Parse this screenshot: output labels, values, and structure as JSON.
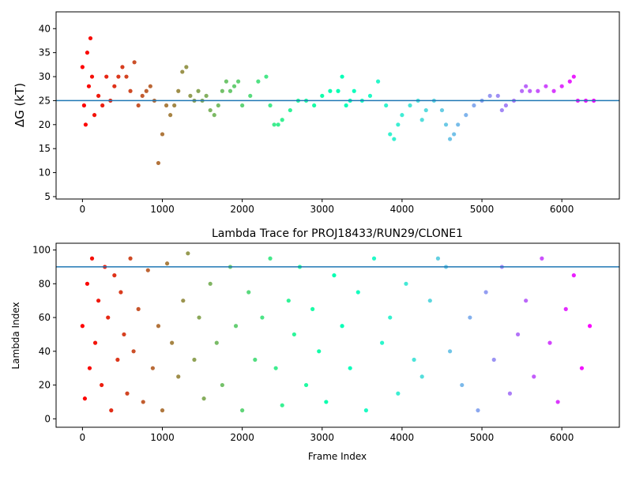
{
  "chart_data": [
    {
      "type": "scatter",
      "title": "",
      "xlabel": "",
      "ylabel": "ΔG (kT)",
      "xlim": [
        -330,
        6720
      ],
      "ylim": [
        4.5,
        43.5
      ],
      "xticks": [
        0,
        1000,
        2000,
        3000,
        4000,
        5000,
        6000
      ],
      "yticks": [
        5,
        10,
        15,
        20,
        25,
        30,
        35,
        40
      ],
      "hline": 25,
      "colormap": "rainbow (red → purple by frame index)",
      "grid": false,
      "series": [
        {
          "x": [
            0,
            20,
            40,
            60,
            80,
            100,
            120,
            150,
            200,
            250,
            300,
            350,
            400,
            450,
            500,
            550,
            600,
            650,
            700,
            750,
            800,
            850,
            900,
            950,
            1000,
            1050,
            1100,
            1150,
            1200,
            1250,
            1300,
            1350,
            1400,
            1450,
            1500,
            1550,
            1600,
            1650,
            1700,
            1750,
            1800,
            1850,
            1900,
            1950,
            2000,
            2100,
            2200,
            2300,
            2350,
            2400,
            2450,
            2500,
            2600,
            2700,
            2800,
            2900,
            3000,
            3100,
            3200,
            3250,
            3300,
            3350,
            3400,
            3500,
            3600,
            3700,
            3800,
            3850,
            3900,
            3950,
            4000,
            4100,
            4200,
            4250,
            4300,
            4400,
            4500,
            4550,
            4600,
            4650,
            4700,
            4800,
            4900,
            5000,
            5100,
            5200,
            5250,
            5300,
            5400,
            5500,
            5550,
            5600,
            5700,
            5800,
            5900,
            6000,
            6100,
            6150,
            6200,
            6300,
            6400
          ],
          "values": [
            32,
            24,
            20,
            35,
            28,
            38,
            30,
            22,
            26,
            24,
            30,
            25,
            28,
            30,
            32,
            30,
            27,
            33,
            24,
            26,
            27,
            28,
            25,
            12,
            18,
            24,
            22,
            24,
            27,
            31,
            32,
            26,
            25,
            27,
            25,
            26,
            23,
            22,
            24,
            27,
            29,
            27,
            28,
            29,
            24,
            26,
            29,
            30,
            24,
            20,
            20,
            21,
            23,
            25,
            25,
            24,
            26,
            27,
            27,
            30,
            24,
            25,
            27,
            25,
            26,
            29,
            24,
            18,
            17,
            20,
            22,
            24,
            25,
            21,
            23,
            25,
            23,
            20,
            17,
            18,
            20,
            22,
            24,
            25,
            26,
            26,
            23,
            24,
            25,
            27,
            28,
            27,
            27,
            28,
            27,
            28,
            29,
            30,
            25,
            25,
            25
          ]
        }
      ]
    },
    {
      "type": "scatter",
      "title": "Lambda Trace for PROJ18433/RUN29/CLONE1",
      "xlabel": "Frame Index",
      "ylabel": "Lambda Index",
      "xlim": [
        -330,
        6720
      ],
      "ylim": [
        -5,
        104
      ],
      "xticks": [
        0,
        1000,
        2000,
        3000,
        4000,
        5000,
        6000
      ],
      "yticks": [
        0,
        20,
        40,
        60,
        80,
        100
      ],
      "hline": 90,
      "colormap": "rainbow (red → purple by frame index)",
      "grid": false,
      "series": [
        {
          "x": [
            0,
            30,
            60,
            90,
            120,
            160,
            200,
            240,
            280,
            320,
            360,
            400,
            440,
            480,
            520,
            560,
            600,
            640,
            700,
            760,
            820,
            880,
            950,
            1000,
            1060,
            1120,
            1200,
            1260,
            1320,
            1400,
            1460,
            1520,
            1600,
            1680,
            1750,
            1850,
            1920,
            2000,
            2080,
            2160,
            2250,
            2350,
            2420,
            2500,
            2580,
            2650,
            2720,
            2800,
            2880,
            2960,
            3050,
            3150,
            3250,
            3350,
            3450,
            3550,
            3650,
            3750,
            3850,
            3950,
            4050,
            4150,
            4250,
            4350,
            4450,
            4550,
            4600,
            4750,
            4850,
            4950,
            5050,
            5150,
            5250,
            5350,
            5450,
            5550,
            5650,
            5750,
            5850,
            5950,
            6050,
            6150,
            6250,
            6350
          ],
          "values": [
            55,
            12,
            80,
            30,
            95,
            45,
            70,
            20,
            90,
            60,
            5,
            85,
            35,
            75,
            50,
            15,
            95,
            40,
            65,
            10,
            88,
            30,
            55,
            5,
            92,
            45,
            25,
            70,
            98,
            35,
            60,
            12,
            80,
            45,
            20,
            90,
            55,
            5,
            75,
            35,
            60,
            95,
            30,
            8,
            70,
            50,
            90,
            20,
            65,
            40,
            10,
            85,
            55,
            30,
            75,
            5,
            95,
            45,
            60,
            15,
            80,
            35,
            25,
            70,
            95,
            90,
            40,
            20,
            60,
            5,
            75,
            35,
            90,
            15,
            50,
            70,
            25,
            95,
            45,
            10,
            65,
            85,
            30,
            55
          ]
        }
      ]
    }
  ]
}
